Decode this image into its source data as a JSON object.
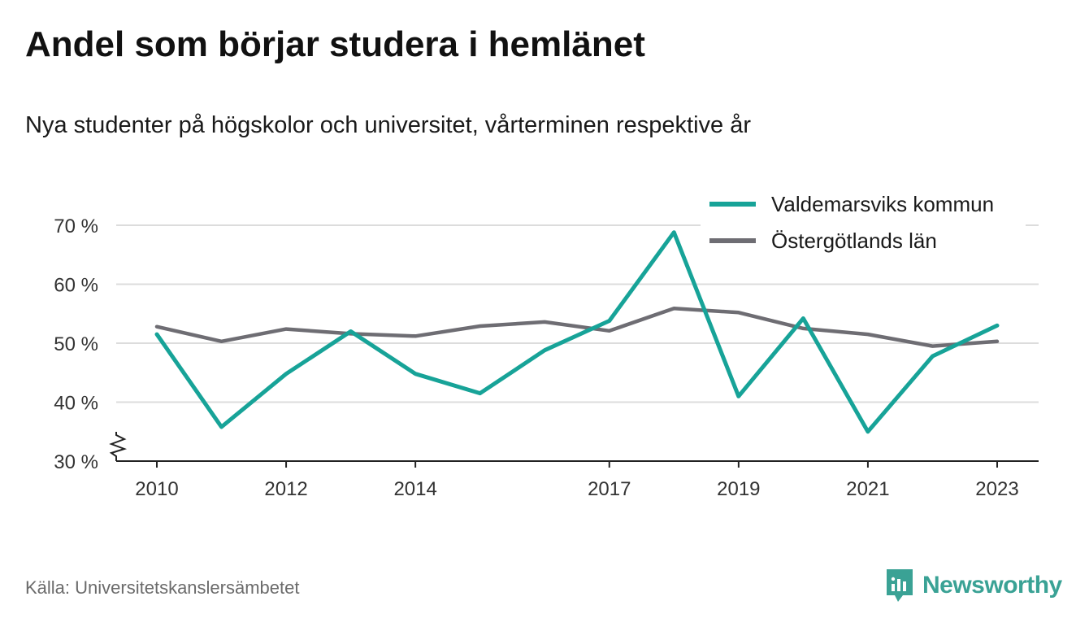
{
  "title": "Andel som börjar studera i hemlänet",
  "subtitle": "Nya studenter på högskolor och universitet, vårterminen respektive år",
  "source": "Källa: Universitetskanslersämbetet",
  "brand": {
    "name": "Newsworthy",
    "color": "#3aa295"
  },
  "chart_data": {
    "type": "line",
    "x": [
      2010,
      2011,
      2012,
      2013,
      2014,
      2015,
      2016,
      2017,
      2018,
      2019,
      2020,
      2021,
      2022,
      2023
    ],
    "x_tick_labels": [
      "2010",
      "2012",
      "2014",
      "2017",
      "2019",
      "2021",
      "2023"
    ],
    "x_tick_values": [
      2010,
      2012,
      2014,
      2017,
      2019,
      2021,
      2023
    ],
    "y_ticks": [
      30,
      40,
      50,
      60,
      70
    ],
    "y_tick_labels": [
      "30 %",
      "40 %",
      "50 %",
      "60 %",
      "70 %"
    ],
    "ylim": [
      30,
      70
    ],
    "y_axis_break": true,
    "grid": true,
    "legend_position": "top-right",
    "series": [
      {
        "name": "Valdemarsviks kommun",
        "color": "#17a398",
        "values": [
          51.5,
          35.8,
          44.8,
          52.0,
          44.8,
          41.5,
          48.8,
          53.8,
          68.8,
          41.0,
          54.2,
          35.0,
          47.8,
          53.0
        ]
      },
      {
        "name": "Östergötlands län",
        "color": "#6e6d73",
        "values": [
          52.8,
          50.3,
          52.4,
          51.6,
          51.2,
          52.9,
          53.6,
          52.1,
          55.9,
          55.2,
          52.5,
          51.5,
          49.5,
          50.3
        ]
      }
    ]
  }
}
